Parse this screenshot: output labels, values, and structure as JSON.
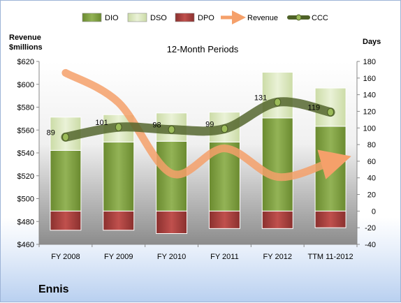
{
  "company": "Ennis",
  "chart_data": {
    "type": "bar",
    "title": "12-Month Periods",
    "left_axis_label": [
      "Revenue",
      "$millions"
    ],
    "right_axis_label": "Days",
    "categories": [
      "FY 2008",
      "FY 2009",
      "FY 2010",
      "FY 2011",
      "FY 2012",
      "TTM 11-2012"
    ],
    "left_ylim": [
      460,
      620
    ],
    "left_ticks": [
      "$460",
      "$480",
      "$500",
      "$520",
      "$540",
      "$560",
      "$580",
      "$600",
      "$620"
    ],
    "right_ylim": [
      -40,
      180
    ],
    "right_ticks": [
      "-40",
      "-20",
      "0",
      "20",
      "40",
      "60",
      "80",
      "100",
      "120",
      "140",
      "160",
      "180"
    ],
    "grid": false,
    "legend_position": "top",
    "legend": [
      "DIO",
      "DSO",
      "DPO",
      "Revenue",
      "CCC"
    ],
    "series": [
      {
        "name": "DIO",
        "axis": "right",
        "values": [
          73,
          83,
          84,
          83,
          112,
          102
        ],
        "color": "#77933c"
      },
      {
        "name": "DSO",
        "axis": "right",
        "values": [
          40,
          33,
          34,
          36,
          55,
          46
        ],
        "color": "#d7e4bd"
      },
      {
        "name": "DPO",
        "axis": "right",
        "values": [
          -23,
          -23,
          -27,
          -21,
          -21,
          -20
        ],
        "color": "#953735"
      },
      {
        "name": "Revenue",
        "axis": "left",
        "values": [
          610,
          584,
          522,
          544,
          519,
          532
        ],
        "color": "#f79646"
      },
      {
        "name": "CCC",
        "axis": "right",
        "values": [
          89,
          101,
          98,
          99,
          131,
          119
        ],
        "labels": [
          "89",
          "101",
          "98",
          "99",
          "131",
          "119"
        ],
        "color": "#4f6228"
      }
    ]
  }
}
